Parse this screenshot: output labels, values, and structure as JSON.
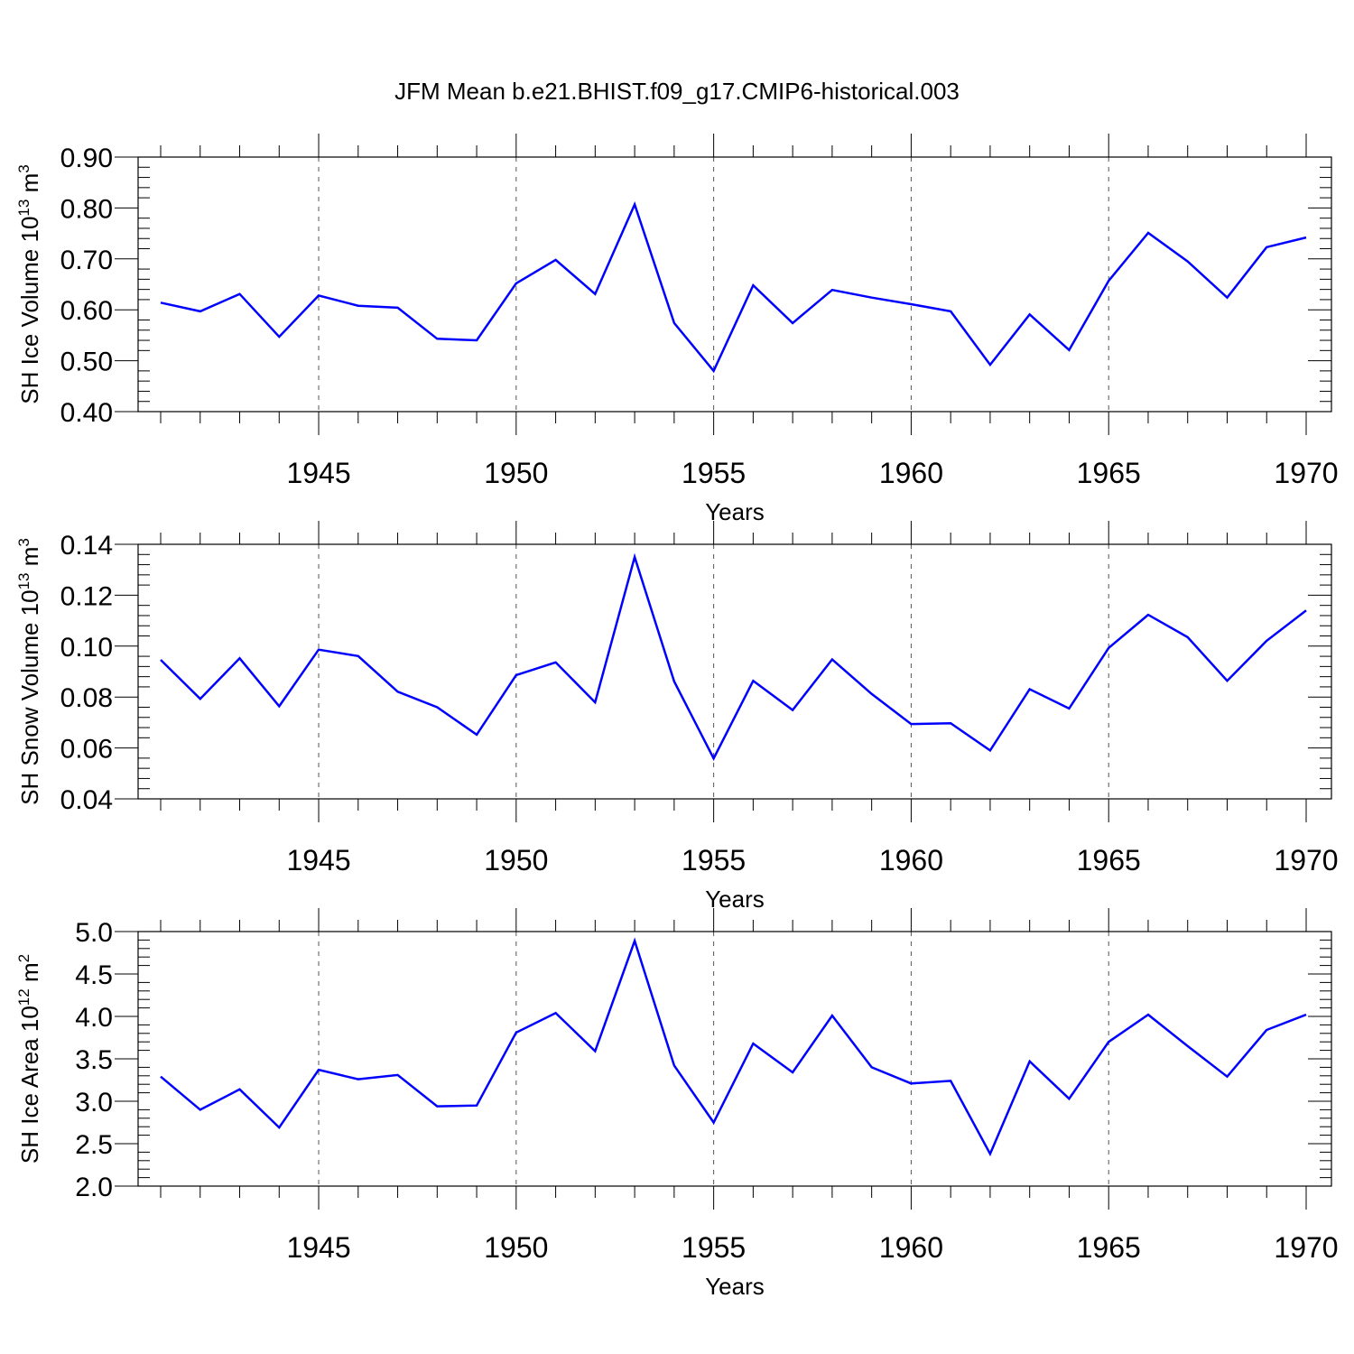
{
  "title": "JFM Mean b.e21.BHIST.f09_g17.CMIP6-historical.003",
  "line_color": "#0000ff",
  "chart_data": [
    {
      "type": "line",
      "ylabel": "SH Ice Volume 10",
      "ylabel_sup": "13",
      "ylabel_unit": " m",
      "ylabel_unit_sup": "3",
      "xlabel": "Years",
      "xlim": [
        1941,
        1970
      ],
      "ylim": [
        0.4,
        0.9
      ],
      "yticks": [
        "0.40",
        "0.50",
        "0.60",
        "0.70",
        "0.80",
        "0.90"
      ],
      "ytick_values": [
        0.4,
        0.5,
        0.6,
        0.7,
        0.8,
        0.9
      ],
      "xticks": [
        "1945",
        "1950",
        "1955",
        "1960",
        "1965",
        "1970"
      ],
      "xtick_values": [
        1945,
        1950,
        1955,
        1960,
        1965,
        1970
      ],
      "x": [
        1941,
        1942,
        1943,
        1944,
        1945,
        1946,
        1947,
        1948,
        1949,
        1950,
        1951,
        1952,
        1953,
        1954,
        1955,
        1956,
        1957,
        1958,
        1959,
        1960,
        1961,
        1962,
        1963,
        1964,
        1965,
        1966,
        1967,
        1968,
        1969,
        1970
      ],
      "values": [
        0.614,
        0.597,
        0.631,
        0.547,
        0.628,
        0.608,
        0.604,
        0.543,
        0.54,
        0.652,
        0.698,
        0.631,
        0.807,
        0.574,
        0.48,
        0.648,
        0.574,
        0.639,
        0.624,
        0.611,
        0.597,
        0.492,
        0.591,
        0.521,
        0.657,
        0.751,
        0.695,
        0.624,
        0.723,
        0.742
      ]
    },
    {
      "type": "line",
      "ylabel": "SH Snow Volume 10",
      "ylabel_sup": "13",
      "ylabel_unit": " m",
      "ylabel_unit_sup": "3",
      "xlabel": "Years",
      "xlim": [
        1941,
        1970
      ],
      "ylim": [
        0.04,
        0.14
      ],
      "yticks": [
        "0.04",
        "0.06",
        "0.08",
        "0.10",
        "0.12",
        "0.14"
      ],
      "ytick_values": [
        0.04,
        0.06,
        0.08,
        0.1,
        0.12,
        0.14
      ],
      "xticks": [
        "1945",
        "1950",
        "1955",
        "1960",
        "1965",
        "1970"
      ],
      "xtick_values": [
        1945,
        1950,
        1955,
        1960,
        1965,
        1970
      ],
      "x": [
        1941,
        1942,
        1943,
        1944,
        1945,
        1946,
        1947,
        1948,
        1949,
        1950,
        1951,
        1952,
        1953,
        1954,
        1955,
        1956,
        1957,
        1958,
        1959,
        1960,
        1961,
        1962,
        1963,
        1964,
        1965,
        1966,
        1967,
        1968,
        1969,
        1970
      ],
      "values": [
        0.0946,
        0.0793,
        0.0952,
        0.0764,
        0.0986,
        0.0961,
        0.0821,
        0.076,
        0.0652,
        0.0886,
        0.0936,
        0.0779,
        0.135,
        0.0861,
        0.0559,
        0.0864,
        0.0749,
        0.0948,
        0.0812,
        0.0694,
        0.0697,
        0.059,
        0.0831,
        0.0755,
        0.0993,
        0.1123,
        0.1035,
        0.0864,
        0.1021,
        0.114
      ]
    },
    {
      "type": "line",
      "ylabel": "SH Ice Area 10",
      "ylabel_sup": "12",
      "ylabel_unit": " m",
      "ylabel_unit_sup": "2",
      "xlabel": "Years",
      "xlim": [
        1941,
        1970
      ],
      "ylim": [
        2.0,
        5.0
      ],
      "yticks": [
        "2.0",
        "2.5",
        "3.0",
        "3.5",
        "4.0",
        "4.5",
        "5.0"
      ],
      "ytick_values": [
        2.0,
        2.5,
        3.0,
        3.5,
        4.0,
        4.5,
        5.0
      ],
      "xticks": [
        "1945",
        "1950",
        "1955",
        "1960",
        "1965",
        "1970"
      ],
      "xtick_values": [
        1945,
        1950,
        1955,
        1960,
        1965,
        1970
      ],
      "x": [
        1941,
        1942,
        1943,
        1944,
        1945,
        1946,
        1947,
        1948,
        1949,
        1950,
        1951,
        1952,
        1953,
        1954,
        1955,
        1956,
        1957,
        1958,
        1959,
        1960,
        1961,
        1962,
        1963,
        1964,
        1965,
        1966,
        1967,
        1968,
        1969,
        1970
      ],
      "values": [
        3.29,
        2.9,
        3.14,
        2.69,
        3.37,
        3.26,
        3.31,
        2.94,
        2.95,
        3.81,
        4.04,
        3.59,
        4.89,
        3.42,
        2.75,
        3.68,
        3.34,
        4.01,
        3.4,
        3.21,
        3.24,
        2.38,
        3.47,
        3.03,
        3.7,
        4.02,
        3.65,
        3.29,
        3.84,
        4.02
      ]
    }
  ]
}
